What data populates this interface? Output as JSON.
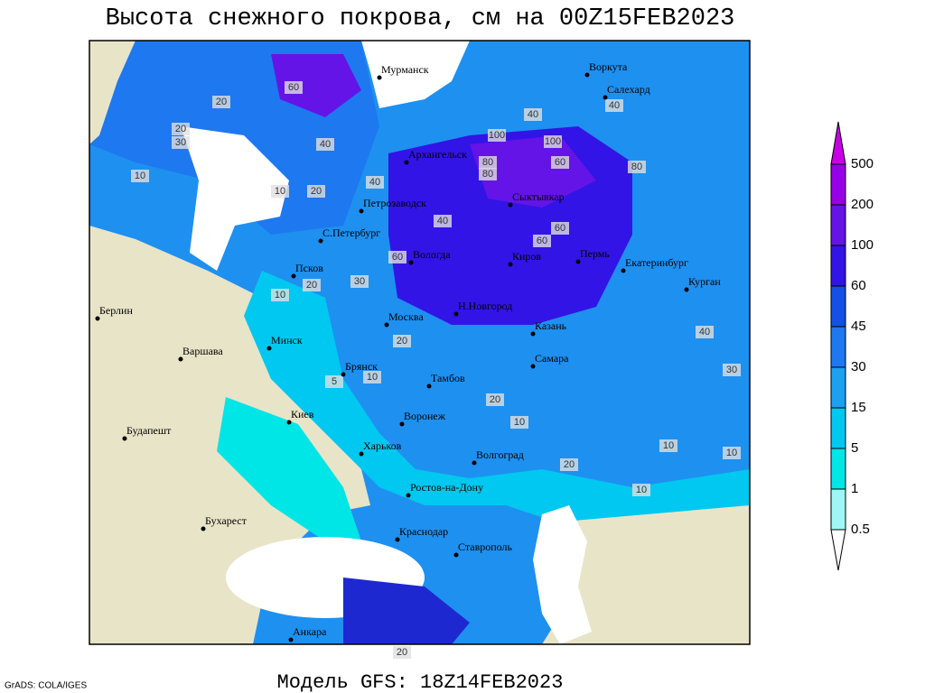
{
  "header": {
    "title": "Высота снежного покрова, см на 00Z15FEB2023"
  },
  "footer": {
    "subtitle": "Модель GFS: 18Z14FEB2023",
    "credit": "GrADS: COLA/IGES"
  },
  "colorbar": {
    "levels": [
      0.5,
      1,
      5,
      15,
      30,
      45,
      60,
      100,
      200,
      500
    ],
    "colors": [
      "#ffffff",
      "#a0f5f5",
      "#00e6e6",
      "#00c8f0",
      "#1ea0f0",
      "#1e78f0",
      "#1450e6",
      "#3214e6",
      "#6414e6",
      "#9600e6",
      "#c800e6"
    ]
  },
  "cities": [
    "Мурманск",
    "Воркута",
    "Салехард",
    "Архангельск",
    "Сыктывкар",
    "Петрозаводск",
    "С.Петербург",
    "Вологда",
    "Киров",
    "Пермь",
    "Екатеринбург",
    "Курган",
    "Псков",
    "Н.Новгород",
    "Москва",
    "Казань",
    "Берлин",
    "Варшава",
    "Минск",
    "Брянск",
    "Тамбов",
    "Самара",
    "Киев",
    "Воронеж",
    "Будапешт",
    "Харьков",
    "Волгоград",
    "Ростов-на-Дону",
    "Бухарест",
    "Краснодар",
    "Ставрополь",
    "Анкара"
  ],
  "contour_labels": [
    60,
    20,
    40,
    20,
    30,
    10,
    100,
    80,
    60,
    40,
    40,
    60,
    80,
    100,
    40,
    60,
    10,
    20,
    40,
    20,
    10,
    30,
    20,
    20,
    10,
    10,
    20,
    40,
    30,
    10,
    5,
    10,
    10,
    20,
    60,
    80
  ]
}
